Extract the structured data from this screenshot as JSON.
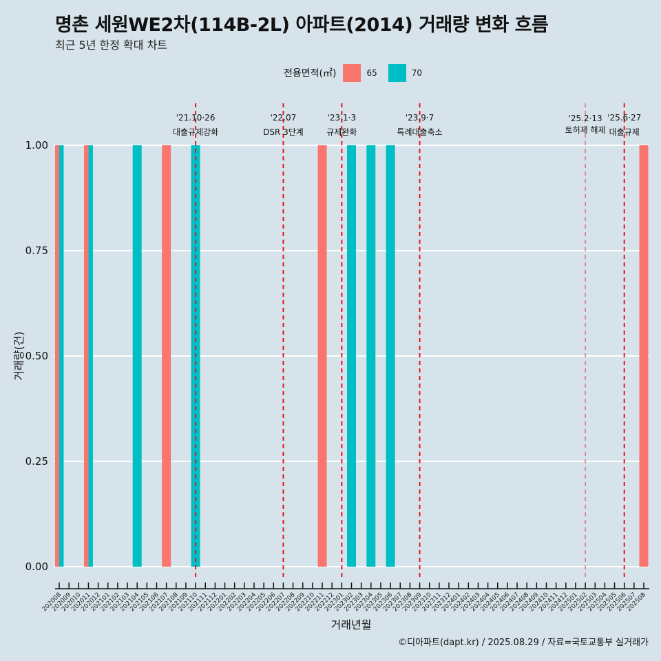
{
  "header": {
    "title": "명촌 세원WE2차(114B-2L) 아파트(2014) 거래량 변화 흐름",
    "subtitle": "최근 5년 한정 확대 차트"
  },
  "legend": {
    "title": "전용면적(㎡)",
    "items": [
      {
        "label": "65",
        "color": "#f8766d"
      },
      {
        "label": "70",
        "color": "#00bfc4"
      }
    ]
  },
  "caption": "©디아파트(dapt.kr) / 2025.08.29 / 자료=국토교통부 실거래가",
  "chart_data": {
    "type": "bar",
    "title": "명촌 세원WE2차(114B-2L) 아파트(2014) 거래량 변화 흐름",
    "subtitle": "최근 5년 한정 확대 차트",
    "xlabel": "거래년월",
    "ylabel": "거래량(건)",
    "ylim": [
      0,
      1
    ],
    "yticks": [
      "0.00",
      "0.25",
      "0.50",
      "0.75",
      "1.00"
    ],
    "ytick_values": [
      0,
      0.25,
      0.5,
      0.75,
      1.0
    ],
    "grid": true,
    "legend_position": "top",
    "categories": [
      "202008",
      "202009",
      "202010",
      "202011",
      "202012",
      "202101",
      "202102",
      "202103",
      "202104",
      "202105",
      "202106",
      "202107",
      "202108",
      "202109",
      "202110",
      "202111",
      "202112",
      "202201",
      "202202",
      "202203",
      "202204",
      "202205",
      "202206",
      "202207",
      "202208",
      "202209",
      "202210",
      "202211",
      "202212",
      "202301",
      "202302",
      "202303",
      "202304",
      "202305",
      "202306",
      "202307",
      "202308",
      "202309",
      "202310",
      "202311",
      "202312",
      "202401",
      "202402",
      "202403",
      "202404",
      "202405",
      "202406",
      "202407",
      "202408",
      "202409",
      "202410",
      "202411",
      "202412",
      "202501",
      "202502",
      "202503",
      "202504",
      "202505",
      "202506",
      "202507",
      "202508"
    ],
    "series": [
      {
        "name": "65",
        "color": "#f8766d",
        "points": [
          {
            "x": "202008",
            "y": 1
          },
          {
            "x": "202011",
            "y": 1
          },
          {
            "x": "202107",
            "y": 1
          },
          {
            "x": "202211",
            "y": 1
          },
          {
            "x": "202508",
            "y": 1
          }
        ]
      },
      {
        "name": "70",
        "color": "#00bfc4",
        "points": [
          {
            "x": "202008",
            "y": 1
          },
          {
            "x": "202011",
            "y": 1
          },
          {
            "x": "202104",
            "y": 1
          },
          {
            "x": "202110",
            "y": 1
          },
          {
            "x": "202302",
            "y": 1
          },
          {
            "x": "202304",
            "y": 1
          },
          {
            "x": "202306",
            "y": 1
          }
        ]
      }
    ],
    "annotations": [
      {
        "x": "202110",
        "date": "'21.10·26",
        "text": "대출규제강화",
        "style": "bold-dash"
      },
      {
        "x": "202207",
        "date": "'22.07",
        "text": "DSR 3단계",
        "style": "bold-dash"
      },
      {
        "x": "202301",
        "date": "'23.1·3",
        "text": "규제완화",
        "style": "bold-dash"
      },
      {
        "x": "202309",
        "date": "'23.9·7",
        "text": "특례대출축소",
        "style": "bold-dash"
      },
      {
        "x": "202502",
        "date": "'25.2·13",
        "text": "토허제 해제",
        "style": "thin-dash"
      },
      {
        "x": "202506",
        "date": "'25.6·27",
        "text": "대출규제",
        "style": "bold-dash"
      }
    ]
  }
}
